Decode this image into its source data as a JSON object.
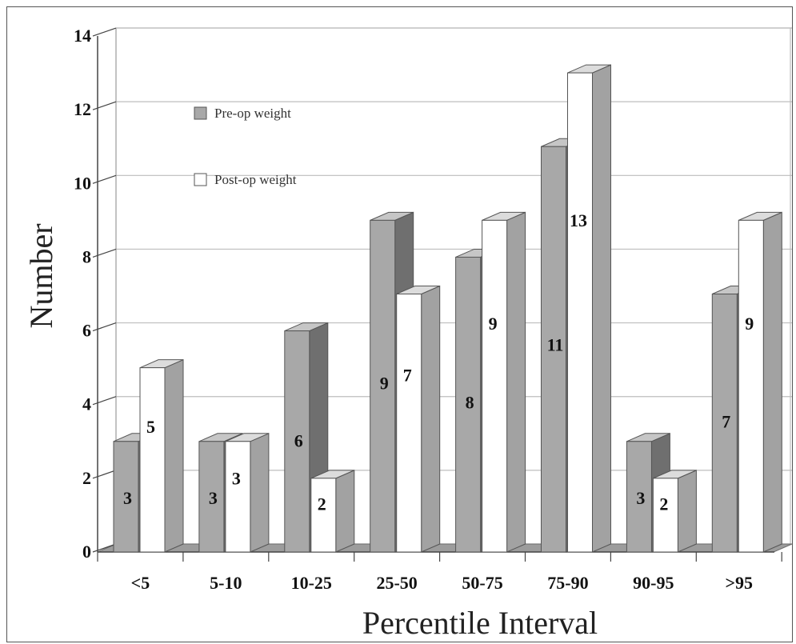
{
  "chart_data": {
    "type": "bar",
    "title": "",
    "xlabel": "Percentile Interval",
    "ylabel": "Number",
    "ylim": [
      0,
      14
    ],
    "yticks": [
      0,
      2,
      4,
      6,
      8,
      10,
      12,
      14
    ],
    "grid": true,
    "legend_placement": "top-left",
    "categories": [
      "<5",
      "5-10",
      "10-25",
      "25-50",
      "50-75",
      "75-90",
      "90-95",
      ">95"
    ],
    "series": [
      {
        "name": "Pre-op weight",
        "color": "#a6a6a6",
        "values": [
          3,
          3,
          6,
          9,
          8,
          11,
          3,
          7
        ]
      },
      {
        "name": "Post-op weight",
        "color": "#ffffff",
        "values": [
          5,
          3,
          2,
          7,
          9,
          13,
          2,
          9
        ]
      }
    ]
  }
}
